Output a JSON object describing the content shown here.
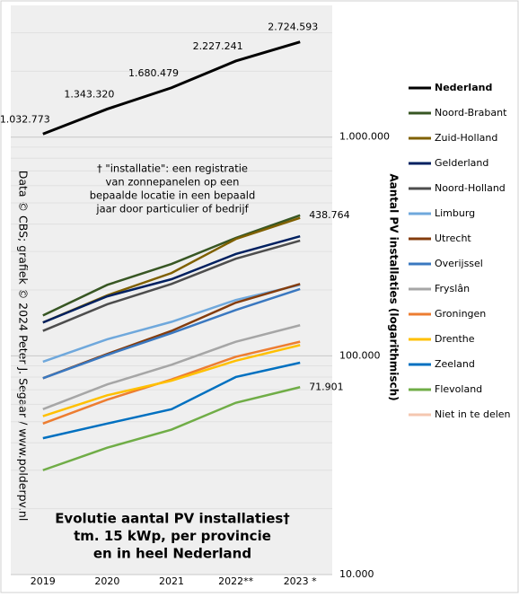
{
  "chart_data": {
    "type": "line",
    "title": [
      "Evolutie  aantal PV installaties†",
      "tm. 15 kWp, per provincie",
      "en in  heel Nederland"
    ],
    "note": [
      "† \"installatie\": een registratie",
      "van zonnepanelen op een",
      "bepaalde locatie in een bepaald",
      "jaar door particulier of bedrijf"
    ],
    "credit": "Data © CBS; grafiek © 2024  Peter J. Segaar / www.polderpv.nl",
    "y_label": "Aantal PV installaties (logarithmisch)",
    "categories": [
      "2019",
      "2020",
      "2021",
      "2022**",
      "2023 *"
    ],
    "log_scale": true,
    "grid": true,
    "minor_grid": true,
    "ylim": [
      10000,
      4000000
    ],
    "yticks": [
      {
        "value": 10000,
        "label": "10.000"
      },
      {
        "value": 100000,
        "label": "100.000"
      },
      {
        "value": 1000000,
        "label": "1.000.000"
      }
    ],
    "legend": "right",
    "series": [
      {
        "name": "Nederland",
        "color": "#000000",
        "values": [
          1032773,
          1343320,
          1680479,
          2227241,
          2724593
        ],
        "value_labels": [
          "1.032.773",
          "1.343.320",
          "1.680.479",
          "2.227.241",
          "2.724.593"
        ]
      },
      {
        "name": "Noord-Brabant",
        "color": "#375623",
        "values": [
          153000,
          211000,
          263000,
          346000,
          438764
        ],
        "value_labels": [
          null,
          null,
          null,
          null,
          "438.764"
        ]
      },
      {
        "name": "Zuid-Holland",
        "color": "#7f6000",
        "values": [
          142000,
          189000,
          239000,
          342000,
          427000
        ]
      },
      {
        "name": "Gelderland",
        "color": "#002060",
        "values": [
          142000,
          187000,
          224000,
          292000,
          352000
        ]
      },
      {
        "name": "Noord-Holland",
        "color": "#4d4d4d",
        "values": [
          130000,
          172000,
          213000,
          278000,
          336000
        ]
      },
      {
        "name": "Limburg",
        "color": "#6fa8dc",
        "values": [
          94000,
          119000,
          143000,
          180000,
          211000
        ]
      },
      {
        "name": "Utrecht",
        "color": "#843c0c",
        "values": [
          79000,
          102000,
          130000,
          175000,
          213000
        ]
      },
      {
        "name": "Overijssel",
        "color": "#3a78c0",
        "values": [
          79000,
          101000,
          127000,
          162000,
          202000
        ]
      },
      {
        "name": "Fryslân",
        "color": "#a6a6a6",
        "values": [
          57000,
          74000,
          91000,
          116000,
          138000
        ]
      },
      {
        "name": "Groningen",
        "color": "#ed7d31",
        "values": [
          49000,
          63000,
          78000,
          99000,
          116000
        ]
      },
      {
        "name": "Drenthe",
        "color": "#ffc000",
        "values": [
          53000,
          66000,
          77000,
          95000,
          112000
        ]
      },
      {
        "name": "Zeeland",
        "color": "#0070c0",
        "values": [
          42000,
          49000,
          57000,
          80000,
          93000
        ]
      },
      {
        "name": "Flevoland",
        "color": "#70ad47",
        "values": [
          30000,
          38000,
          46000,
          61000,
          71901
        ],
        "value_labels": [
          null,
          null,
          null,
          null,
          "71.901"
        ]
      },
      {
        "name": "Niet in te delen",
        "color": "#f4c7b0",
        "values": [
          null,
          null,
          null,
          null,
          null
        ]
      }
    ]
  }
}
